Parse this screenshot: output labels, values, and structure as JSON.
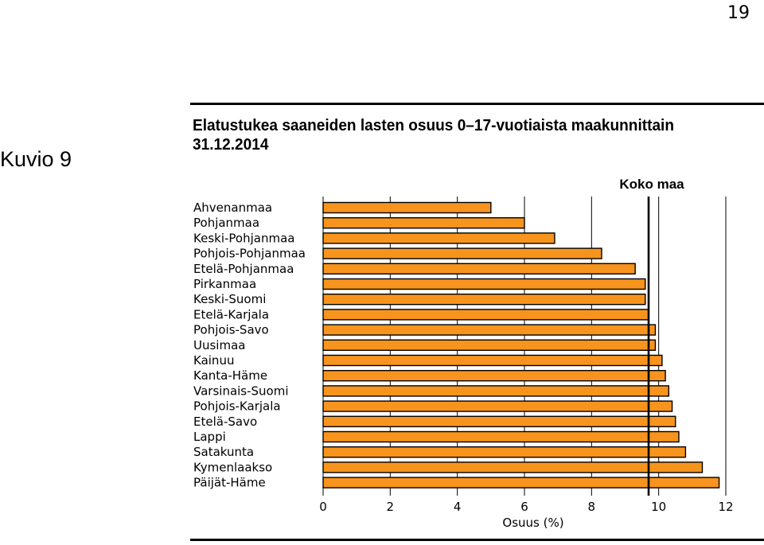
{
  "page_number": "19",
  "figure_label": "Kuvio 9",
  "chart_data": {
    "type": "bar",
    "orientation": "horizontal",
    "title": "Elatustukea saaneiden lasten osuus 0–17-vuotiaista maakunnittain 31.12.2014",
    "xlabel": "Osuus (%)",
    "ylabel": "",
    "xlim": [
      0,
      12
    ],
    "xticks": [
      0,
      2,
      4,
      6,
      8,
      10,
      12
    ],
    "grid": "vertical",
    "categories": [
      "Ahvenanmaa",
      "Pohjanmaa",
      "Keski-Pohjanmaa",
      "Pohjois-Pohjanmaa",
      "Etelä-Pohjanmaa",
      "Pirkanmaa",
      "Keski-Suomi",
      "Etelä-Karjala",
      "Pohjois-Savo",
      "Uusimaa",
      "Kainuu",
      "Kanta-Häme",
      "Varsinais-Suomi",
      "Pohjois-Karjala",
      "Etelä-Savo",
      "Lappi",
      "Satakunta",
      "Kymenlaakso",
      "Päijät-Häme"
    ],
    "values": [
      5.0,
      6.0,
      6.9,
      8.3,
      9.3,
      9.6,
      9.6,
      9.7,
      9.9,
      9.9,
      10.1,
      10.2,
      10.3,
      10.4,
      10.5,
      10.6,
      10.8,
      11.3,
      11.8
    ],
    "reference_line": {
      "label": "Koko maa",
      "value": 9.7
    },
    "colors": {
      "bar_fill": "#F7941D",
      "bar_stroke": "#000000"
    }
  }
}
